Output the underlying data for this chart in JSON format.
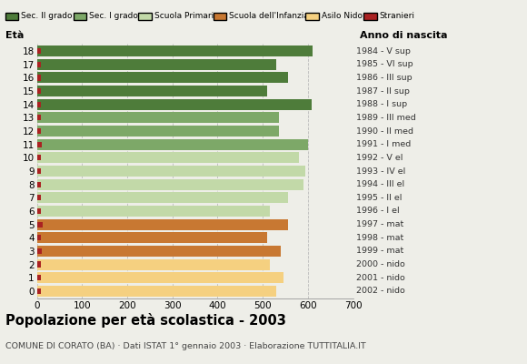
{
  "ages": [
    18,
    17,
    16,
    15,
    14,
    13,
    12,
    11,
    10,
    9,
    8,
    7,
    6,
    5,
    4,
    3,
    2,
    1,
    0
  ],
  "years": [
    "1984 - V sup",
    "1985 - VI sup",
    "1986 - III sup",
    "1987 - II sup",
    "1988 - I sup",
    "1989 - III med",
    "1990 - II med",
    "1991 - I med",
    "1992 - V el",
    "1993 - IV el",
    "1994 - III el",
    "1995 - II el",
    "1996 - I el",
    "1997 - mat",
    "1998 - mat",
    "1999 - mat",
    "2000 - nido",
    "2001 - nido",
    "2002 - nido"
  ],
  "total_values": [
    610,
    530,
    555,
    510,
    608,
    535,
    535,
    600,
    580,
    595,
    590,
    555,
    515,
    555,
    510,
    540,
    515,
    545,
    530
  ],
  "stranieri_values": [
    8,
    8,
    8,
    8,
    8,
    8,
    8,
    10,
    8,
    8,
    8,
    8,
    8,
    12,
    8,
    10,
    8,
    8,
    8
  ],
  "bar_colors": [
    "#4e7c3a",
    "#4e7c3a",
    "#4e7c3a",
    "#4e7c3a",
    "#4e7c3a",
    "#7da868",
    "#7da868",
    "#7da868",
    "#c2d9a8",
    "#c2d9a8",
    "#c2d9a8",
    "#c2d9a8",
    "#c2d9a8",
    "#c87832",
    "#c87832",
    "#c87832",
    "#f5d080",
    "#f5d080",
    "#f5d080"
  ],
  "legend_labels": [
    "Sec. II grado",
    "Sec. I grado",
    "Scuola Primaria",
    "Scuola dell'Infanzia",
    "Asilo Nido",
    "Stranieri"
  ],
  "legend_colors": [
    "#4e7c3a",
    "#7da868",
    "#c2d9a8",
    "#c87832",
    "#f5d080",
    "#aa2222"
  ],
  "stranieri_color": "#aa2222",
  "title": "Popolazione per età scolastica - 2003",
  "subtitle": "COMUNE DI CORATO (BA) · Dati ISTAT 1° gennaio 2003 · Elaborazione TUTTITALIA.IT",
  "xlabel_age": "Età",
  "xlabel_year": "Anno di nascita",
  "xlim": [
    0,
    700
  ],
  "xticks": [
    0,
    100,
    200,
    300,
    400,
    500,
    600,
    700
  ],
  "background_color": "#eeeee8",
  "bar_height": 0.82,
  "grid_color": "#bbbbbb"
}
